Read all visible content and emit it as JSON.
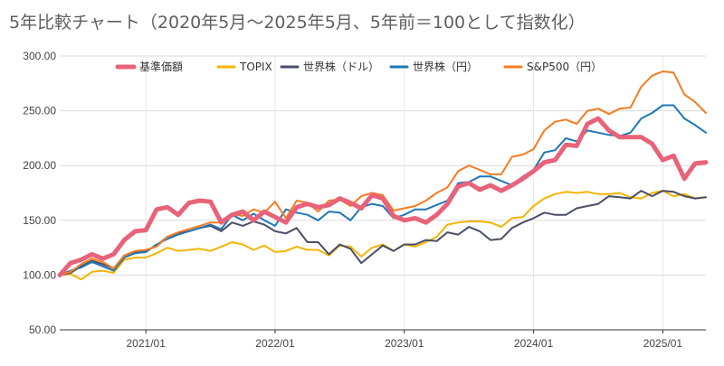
{
  "chart_data": {
    "type": "line",
    "title": "5年比較チャート（2020年5月〜2025年5月、5年前＝100として指数化）",
    "ylim": [
      50,
      300
    ],
    "yticks": [
      "50.00",
      "100.00",
      "150.00",
      "200.00",
      "250.00",
      "300.00"
    ],
    "ytick_values": [
      50,
      100,
      150,
      200,
      250,
      300
    ],
    "x": [
      "2020/05",
      "2020/06",
      "2020/07",
      "2020/08",
      "2020/09",
      "2020/10",
      "2020/11",
      "2020/12",
      "2021/01",
      "2021/02",
      "2021/03",
      "2021/04",
      "2021/05",
      "2021/06",
      "2021/07",
      "2021/08",
      "2021/09",
      "2021/10",
      "2021/11",
      "2021/12",
      "2022/01",
      "2022/02",
      "2022/03",
      "2022/04",
      "2022/05",
      "2022/06",
      "2022/07",
      "2022/08",
      "2022/09",
      "2022/10",
      "2022/11",
      "2022/12",
      "2023/01",
      "2023/02",
      "2023/03",
      "2023/04",
      "2023/05",
      "2023/06",
      "2023/07",
      "2023/08",
      "2023/09",
      "2023/10",
      "2023/11",
      "2023/12",
      "2024/01",
      "2024/02",
      "2024/03",
      "2024/04",
      "2024/05",
      "2024/06",
      "2024/07",
      "2024/08",
      "2024/09",
      "2024/10",
      "2024/11",
      "2024/12",
      "2025/01",
      "2025/02",
      "2025/03",
      "2025/04",
      "2025/05"
    ],
    "xtick_labels": [
      "2021/01",
      "2022/01",
      "2023/01",
      "2024/01",
      "2025/01"
    ],
    "xtick_index": [
      8,
      20,
      32,
      44,
      56
    ],
    "legend_position": "top",
    "grid": true,
    "series": [
      {
        "name": "基準価額",
        "color": "#e8637a",
        "width": 5,
        "values": [
          100,
          111,
          114,
          119,
          115,
          119,
          132,
          140,
          141,
          160,
          162,
          155,
          166,
          168,
          167,
          148,
          155,
          158,
          150,
          158,
          153,
          148,
          162,
          165,
          162,
          164,
          170,
          166,
          161,
          173,
          170,
          154,
          150,
          152,
          148,
          155,
          165,
          181,
          184,
          178,
          182,
          177,
          182,
          188,
          195,
          203,
          205,
          219,
          218,
          238,
          243,
          232,
          226,
          226,
          226,
          220,
          205,
          209,
          188,
          202,
          203
        ]
      },
      {
        "name": "TOPIX",
        "color": "#f4b400",
        "width": 2,
        "values": [
          100,
          101,
          96,
          103,
          104,
          102,
          114,
          116,
          116,
          120,
          125,
          122,
          123,
          124,
          122,
          126,
          130,
          128,
          123,
          127,
          121,
          122,
          126,
          123,
          123,
          118,
          127,
          126,
          117,
          125,
          128,
          122,
          128,
          126,
          130,
          135,
          146,
          148,
          149,
          149,
          148,
          144,
          152,
          153,
          163,
          170,
          174,
          176,
          175,
          176,
          174,
          174,
          175,
          171,
          170,
          175,
          177,
          172,
          174,
          170,
          171
        ]
      },
      {
        "name": "世界株（ドル）",
        "color": "#4a4e69",
        "width": 2,
        "values": [
          100,
          102,
          108,
          113,
          110,
          106,
          118,
          121,
          122,
          127,
          135,
          138,
          140,
          143,
          145,
          140,
          148,
          145,
          149,
          146,
          140,
          138,
          143,
          130,
          130,
          119,
          128,
          124,
          111,
          119,
          127,
          122,
          128,
          128,
          132,
          131,
          139,
          137,
          144,
          140,
          132,
          133,
          143,
          148,
          152,
          157,
          155,
          155,
          161,
          163,
          165,
          172,
          171,
          170,
          177,
          172,
          177,
          176,
          172,
          170,
          171
        ]
      },
      {
        "name": "世界株（円）",
        "color": "#1f77b4",
        "width": 2,
        "values": [
          100,
          104,
          107,
          112,
          108,
          104,
          116,
          120,
          121,
          128,
          133,
          137,
          140,
          143,
          146,
          142,
          155,
          150,
          156,
          150,
          145,
          160,
          157,
          155,
          150,
          158,
          157,
          150,
          162,
          165,
          163,
          152,
          155,
          160,
          160,
          164,
          168,
          184,
          185,
          190,
          190,
          186,
          182,
          190,
          196,
          212,
          214,
          225,
          222,
          232,
          230,
          228,
          227,
          230,
          243,
          248,
          255,
          255,
          243,
          237,
          230
        ]
      },
      {
        "name": "S&P500（円）",
        "color": "#f57c20",
        "width": 2,
        "values": [
          100,
          103,
          110,
          115,
          112,
          106,
          118,
          122,
          123,
          126,
          135,
          139,
          142,
          145,
          148,
          148,
          156,
          154,
          160,
          157,
          167,
          152,
          168,
          166,
          158,
          168,
          169,
          163,
          172,
          175,
          173,
          159,
          161,
          163,
          168,
          175,
          180,
          195,
          200,
          196,
          192,
          192,
          208,
          210,
          215,
          232,
          240,
          242,
          238,
          250,
          252,
          247,
          252,
          253,
          272,
          282,
          286,
          285,
          265,
          258,
          248
        ]
      }
    ]
  }
}
